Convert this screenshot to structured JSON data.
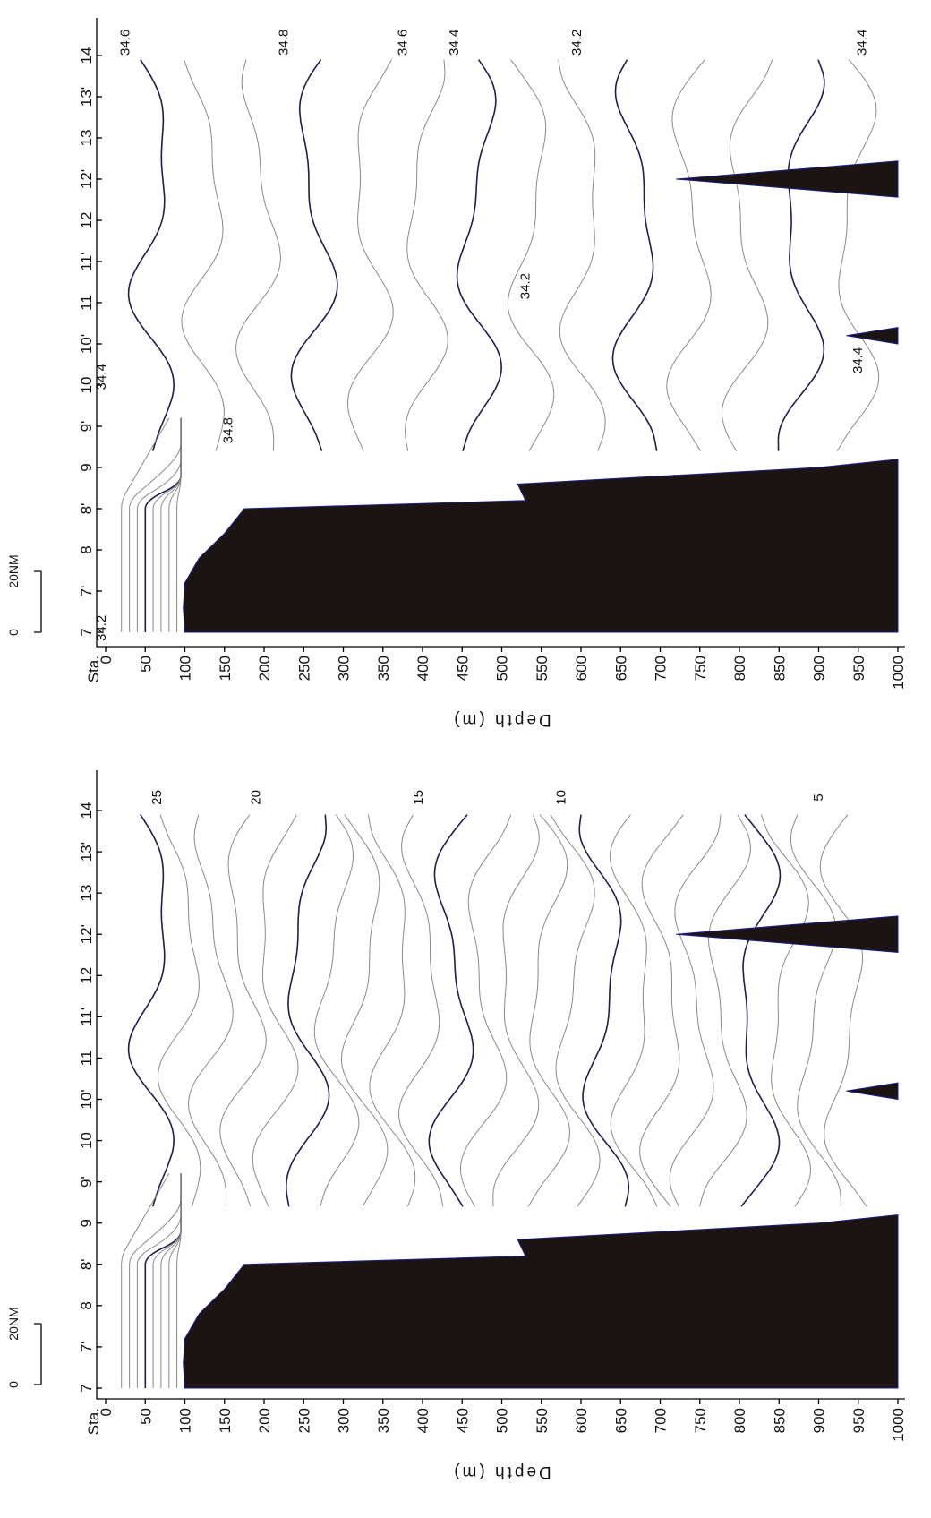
{
  "chart_data": [
    {
      "type": "contour",
      "panel": "salinity-section",
      "orientation": "rotated-90-clockwise",
      "ylabel": "Depth (m)",
      "station_label": "Sta.",
      "scale_bar_label": "20NM",
      "scale_bar_ticks": [
        "0",
        "20NM"
      ],
      "stations": [
        "7",
        "7'",
        "8",
        "8'",
        "9",
        "9'",
        "10",
        "10'",
        "11",
        "11'",
        "12",
        "12'",
        "13",
        "13'",
        "14"
      ],
      "depth_ticks": [
        0,
        50,
        100,
        150,
        200,
        250,
        300,
        350,
        400,
        450,
        500,
        550,
        600,
        650,
        700,
        750,
        800,
        850,
        900,
        950,
        1000
      ],
      "depth_range": [
        0,
        1000
      ],
      "contour_interval": 0.1,
      "contour_labels": [
        {
          "text": "34.6",
          "station": 14.05,
          "depth": 30
        },
        {
          "text": "34.8",
          "station": 14.05,
          "depth": 230
        },
        {
          "text": "34.6",
          "station": 14.05,
          "depth": 380
        },
        {
          "text": "34.4",
          "station": 14.05,
          "depth": 445
        },
        {
          "text": "34.2",
          "station": 14.05,
          "depth": 600
        },
        {
          "text": "34.4",
          "station": 14.05,
          "depth": 960
        },
        {
          "text": "34.4",
          "station": 10.1,
          "depth": 0
        },
        {
          "text": "34.8",
          "station": 9.45,
          "depth": 160
        },
        {
          "text": "34.2",
          "station": 11.2,
          "depth": 535
        },
        {
          "text": "34.4",
          "station": 10.3,
          "depth": 955
        },
        {
          "text": "34.2",
          "station": 7.05,
          "depth": 0
        }
      ],
      "bottom_profile": [
        {
          "station": 7.0,
          "depth": 100
        },
        {
          "station": 7.3,
          "depth": 98
        },
        {
          "station": 7.6,
          "depth": 100
        },
        {
          "station": 7.9,
          "depth": 118
        },
        {
          "station": 8.2,
          "depth": 150
        },
        {
          "station": 8.5,
          "depth": 175
        },
        {
          "station": 8.6,
          "depth": 530
        },
        {
          "station": 8.8,
          "depth": 520
        },
        {
          "station": 9.0,
          "depth": 900
        },
        {
          "station": 9.1,
          "depth": 1000
        }
      ],
      "seamounts": [
        {
          "station": 10.6,
          "top_depth": 935
        },
        {
          "station": 12.5,
          "top_depth": 720
        }
      ],
      "colors": {
        "bathymetry": "#1c1412",
        "major_contour": "#1a1f4e",
        "minor_contour": "#8a8a8a"
      }
    },
    {
      "type": "contour",
      "panel": "temperature-section",
      "orientation": "rotated-90-clockwise",
      "ylabel": "Depth (m)",
      "station_label": "Sta.",
      "scale_bar_label": "20NM",
      "scale_bar_ticks": [
        "0",
        "20NM"
      ],
      "stations": [
        "7",
        "7'",
        "8",
        "8'",
        "9",
        "9'",
        "10",
        "10'",
        "11",
        "11'",
        "12",
        "12'",
        "13",
        "13'",
        "14"
      ],
      "depth_ticks": [
        0,
        50,
        100,
        150,
        200,
        250,
        300,
        350,
        400,
        450,
        500,
        550,
        600,
        650,
        700,
        750,
        800,
        850,
        900,
        950,
        1000
      ],
      "depth_range": [
        0,
        1000
      ],
      "contour_interval": 1,
      "contour_labels": [
        {
          "text": "25",
          "station": 14.05,
          "depth": 70
        },
        {
          "text": "20",
          "station": 14.05,
          "depth": 195
        },
        {
          "text": "15",
          "station": 14.05,
          "depth": 400
        },
        {
          "text": "10",
          "station": 14.05,
          "depth": 580
        },
        {
          "text": "5",
          "station": 14.05,
          "depth": 905
        }
      ],
      "bottom_profile": [
        {
          "station": 7.0,
          "depth": 100
        },
        {
          "station": 7.3,
          "depth": 98
        },
        {
          "station": 7.6,
          "depth": 100
        },
        {
          "station": 7.9,
          "depth": 118
        },
        {
          "station": 8.2,
          "depth": 150
        },
        {
          "station": 8.5,
          "depth": 175
        },
        {
          "station": 8.6,
          "depth": 530
        },
        {
          "station": 8.8,
          "depth": 520
        },
        {
          "station": 9.0,
          "depth": 900
        },
        {
          "station": 9.1,
          "depth": 1000
        }
      ],
      "seamounts": [
        {
          "station": 10.6,
          "top_depth": 935
        },
        {
          "station": 12.5,
          "top_depth": 720
        }
      ],
      "colors": {
        "bathymetry": "#1c1412",
        "major_contour": "#1a1f4e",
        "minor_contour": "#8a8a8a"
      }
    }
  ]
}
